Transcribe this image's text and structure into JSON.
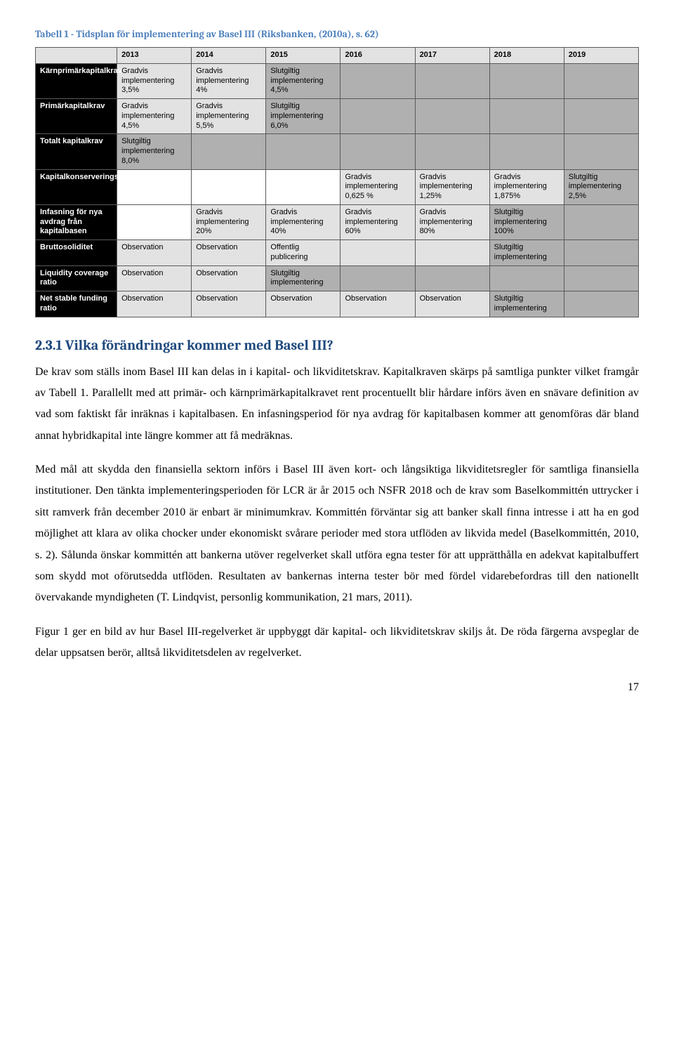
{
  "caption": "Tabell 1 - Tidsplan för implementering av Basel III (Riksbanken, (2010a), s. 62)",
  "years": [
    "2013",
    "2014",
    "2015",
    "2016",
    "2017",
    "2018",
    "2019"
  ],
  "rows": [
    {
      "label": "Kärnprimärkapitalkrav",
      "cells": [
        {
          "text": "Gradvis implementering 3,5%",
          "cls": "light"
        },
        {
          "text": "Gradvis implementering 4%",
          "cls": "light"
        },
        {
          "text": "Slutgiltig implementering 4,5%",
          "cls": "shaded"
        },
        {
          "text": "",
          "cls": "shaded"
        },
        {
          "text": "",
          "cls": "shaded"
        },
        {
          "text": "",
          "cls": "shaded"
        },
        {
          "text": "",
          "cls": "shaded"
        }
      ]
    },
    {
      "label": "Primärkapitalkrav",
      "cells": [
        {
          "text": "Gradvis implementering 4,5%",
          "cls": "light"
        },
        {
          "text": "Gradvis implementering 5,5%",
          "cls": "light"
        },
        {
          "text": "Slutgiltig implementering 6,0%",
          "cls": "shaded"
        },
        {
          "text": "",
          "cls": "shaded"
        },
        {
          "text": "",
          "cls": "shaded"
        },
        {
          "text": "",
          "cls": "shaded"
        },
        {
          "text": "",
          "cls": "shaded"
        }
      ]
    },
    {
      "label": "Totalt kapitalkrav",
      "cells": [
        {
          "text": "Slutgiltig implementering 8,0%",
          "cls": "shaded"
        },
        {
          "text": "",
          "cls": "shaded"
        },
        {
          "text": "",
          "cls": "shaded"
        },
        {
          "text": "",
          "cls": "shaded"
        },
        {
          "text": "",
          "cls": "shaded"
        },
        {
          "text": "",
          "cls": "shaded"
        },
        {
          "text": "",
          "cls": "shaded"
        }
      ]
    },
    {
      "label": "Kapitalkonserveringsbuffert",
      "cells": [
        {
          "text": "",
          "cls": "empty"
        },
        {
          "text": "",
          "cls": "empty"
        },
        {
          "text": "",
          "cls": "empty"
        },
        {
          "text": "Gradvis implementering 0,625 %",
          "cls": "light"
        },
        {
          "text": "Gradvis implementering 1,25%",
          "cls": "light"
        },
        {
          "text": "Gradvis implementering 1,875%",
          "cls": "light"
        },
        {
          "text": "Slutgiltig implementering 2,5%",
          "cls": "shaded"
        }
      ]
    },
    {
      "label": "Infasning för nya avdrag från kapitalbasen",
      "cells": [
        {
          "text": "",
          "cls": "empty"
        },
        {
          "text": "Gradvis implementering 20%",
          "cls": "light"
        },
        {
          "text": "Gradvis implementering 40%",
          "cls": "light"
        },
        {
          "text": "Gradvis implementering 60%",
          "cls": "light"
        },
        {
          "text": "Gradvis implementering 80%",
          "cls": "light"
        },
        {
          "text": "Slutgiltig implementering 100%",
          "cls": "shaded"
        },
        {
          "text": "",
          "cls": "shaded"
        }
      ]
    },
    {
      "label": "Bruttosoliditet",
      "cells": [
        {
          "text": "Observation",
          "cls": "light"
        },
        {
          "text": "Observation",
          "cls": "light"
        },
        {
          "text": "Offentlig publicering",
          "cls": "light"
        },
        {
          "text": "",
          "cls": "light"
        },
        {
          "text": "",
          "cls": "light"
        },
        {
          "text": "Slutgiltig implementering",
          "cls": "shaded"
        },
        {
          "text": "",
          "cls": "shaded"
        }
      ]
    },
    {
      "label": "Liquidity coverage ratio",
      "cells": [
        {
          "text": "Observation",
          "cls": "light"
        },
        {
          "text": "Observation",
          "cls": "light"
        },
        {
          "text": "Slutgiltig implementering",
          "cls": "shaded"
        },
        {
          "text": "",
          "cls": "shaded"
        },
        {
          "text": "",
          "cls": "shaded"
        },
        {
          "text": "",
          "cls": "shaded"
        },
        {
          "text": "",
          "cls": "shaded"
        }
      ]
    },
    {
      "label": "Net stable funding ratio",
      "cells": [
        {
          "text": "Observation",
          "cls": "light"
        },
        {
          "text": "Observation",
          "cls": "light"
        },
        {
          "text": "Observation",
          "cls": "light"
        },
        {
          "text": "Observation",
          "cls": "light"
        },
        {
          "text": "Observation",
          "cls": "light"
        },
        {
          "text": "Slutgiltig implementering",
          "cls": "shaded"
        },
        {
          "text": "",
          "cls": "shaded"
        }
      ]
    }
  ],
  "section_heading": "2.3.1 Vilka förändringar kommer med Basel III?",
  "para1": "De krav som ställs inom Basel III kan delas in i kapital- och likviditetskrav. Kapitalkraven skärps på samtliga punkter vilket framgår av Tabell 1. Parallellt med att primär- och kärnprimärkapitalkravet rent procentuellt blir hårdare införs även en snävare definition av vad som faktiskt får inräknas i kapitalbasen. En infasningsperiod för nya avdrag för kapitalbasen kommer att genomföras där bland annat hybridkapital inte längre kommer att få medräknas.",
  "para2": "Med mål att skydda den finansiella sektorn införs i Basel III även kort- och långsiktiga likviditetsregler för samtliga finansiella institutioner. Den tänkta implementeringsperioden för LCR är år 2015 och NSFR 2018 och de krav som Baselkommittén uttrycker i sitt ramverk från december 2010 är enbart är minimumkrav. Kommittén förväntar sig att banker skall finna intresse i att ha en god möjlighet att klara av olika chocker under ekonomiskt svårare perioder med stora utflöden av likvida medel (Baselkommittén, 2010, s. 2). Sålunda önskar kommittén att bankerna utöver regelverket skall utföra egna tester för att upprätthålla en adekvat kapitalbuffert som skydd mot oförutsedda utflöden. Resultaten av bankernas interna tester bör med fördel vidarebefordras till den nationellt övervakande myndigheten (T. Lindqvist, personlig kommunikation, 21 mars, 2011).",
  "para3": "Figur 1 ger en bild av hur Basel III-regelverket är uppbyggt där kapital- och likviditetskrav skiljs åt. De röda färgerna avspeglar de delar uppsatsen berör, alltså likviditetsdelen av regelverket.",
  "page_number": "17"
}
